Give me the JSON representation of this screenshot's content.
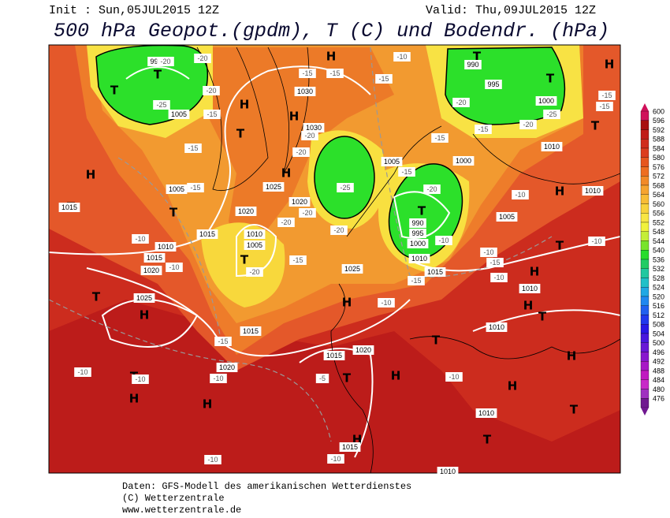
{
  "header": {
    "init": "Init : Sun,05JUL2015 12Z",
    "valid": "Valid: Thu,09JUL2015 12Z",
    "title": "500 hPa Geopot.(gpdm), T (C) und Bodendr. (hPa)"
  },
  "map": {
    "centers": [
      "T",
      "T",
      "H",
      "T",
      "T",
      "H",
      "H",
      "T",
      "H",
      "H",
      "T",
      "T",
      "H",
      "H",
      "T",
      "T",
      "T",
      "H",
      "H",
      "T",
      "H",
      "T",
      "H",
      "T",
      "H",
      "T",
      "H",
      "H",
      "T",
      "H",
      "H",
      "H",
      "T",
      "T",
      "T"
    ],
    "isobar_labels": [
      "995",
      "1005",
      "1030",
      "1030",
      "1005",
      "1025",
      "1020",
      "1020",
      "1015",
      "1010",
      "1005",
      "1010",
      "1015",
      "1020",
      "1025",
      "1025",
      "1015",
      "1020",
      "1020",
      "1015",
      "1015",
      "990",
      "995",
      "1000",
      "1010",
      "1005",
      "1000",
      "1010",
      "990",
      "995",
      "1000",
      "1010",
      "1015",
      "1005",
      "1010",
      "1010",
      "1010",
      "1010",
      "1015"
    ],
    "temperature_labels": [
      "-20",
      "-25",
      "-20",
      "-15",
      "-20",
      "-15",
      "-15",
      "-15",
      "-10",
      "-15",
      "-15",
      "-20",
      "-20",
      "-20",
      "-15",
      "-20",
      "-25",
      "-15",
      "-15",
      "-15",
      "-15",
      "-25",
      "-20",
      "-20",
      "-20",
      "-20",
      "-15",
      "-10",
      "-10",
      "-20",
      "-15",
      "-10",
      "-10",
      "-10",
      "-15",
      "-10",
      "-10",
      "-15",
      "-10",
      "-10",
      "-5",
      "-10",
      "-10",
      "-10",
      "-10",
      "-10"
    ]
  },
  "legend": {
    "levels": [
      600,
      596,
      592,
      588,
      584,
      580,
      576,
      572,
      568,
      564,
      560,
      556,
      552,
      548,
      544,
      540,
      536,
      532,
      528,
      524,
      520,
      516,
      512,
      508,
      504,
      500,
      496,
      492,
      488,
      484,
      480,
      476
    ],
    "colors": [
      "#d0105a",
      "#a81010",
      "#c01c18",
      "#d02c1c",
      "#dc3c1e",
      "#e6561e",
      "#ee6e22",
      "#f28a28",
      "#f6a430",
      "#f8bc36",
      "#f8d23c",
      "#f8e644",
      "#f0f23c",
      "#c4ee38",
      "#78e42c",
      "#28dc2c",
      "#20cc64",
      "#20c8a0",
      "#20c0c8",
      "#20a8e4",
      "#2088f0",
      "#2060f0",
      "#2038ee",
      "#2818e6",
      "#4818de",
      "#6818d6",
      "#8818ce",
      "#a818c6",
      "#c018c0",
      "#c828c8",
      "#a030c0",
      "#701890"
    ]
  },
  "footer": {
    "lines": [
      "Daten: GFS-Modell des amerikanischen Wetterdienstes",
      "(C) Wetterzentrale",
      "www.wetterzentrale.de"
    ]
  }
}
